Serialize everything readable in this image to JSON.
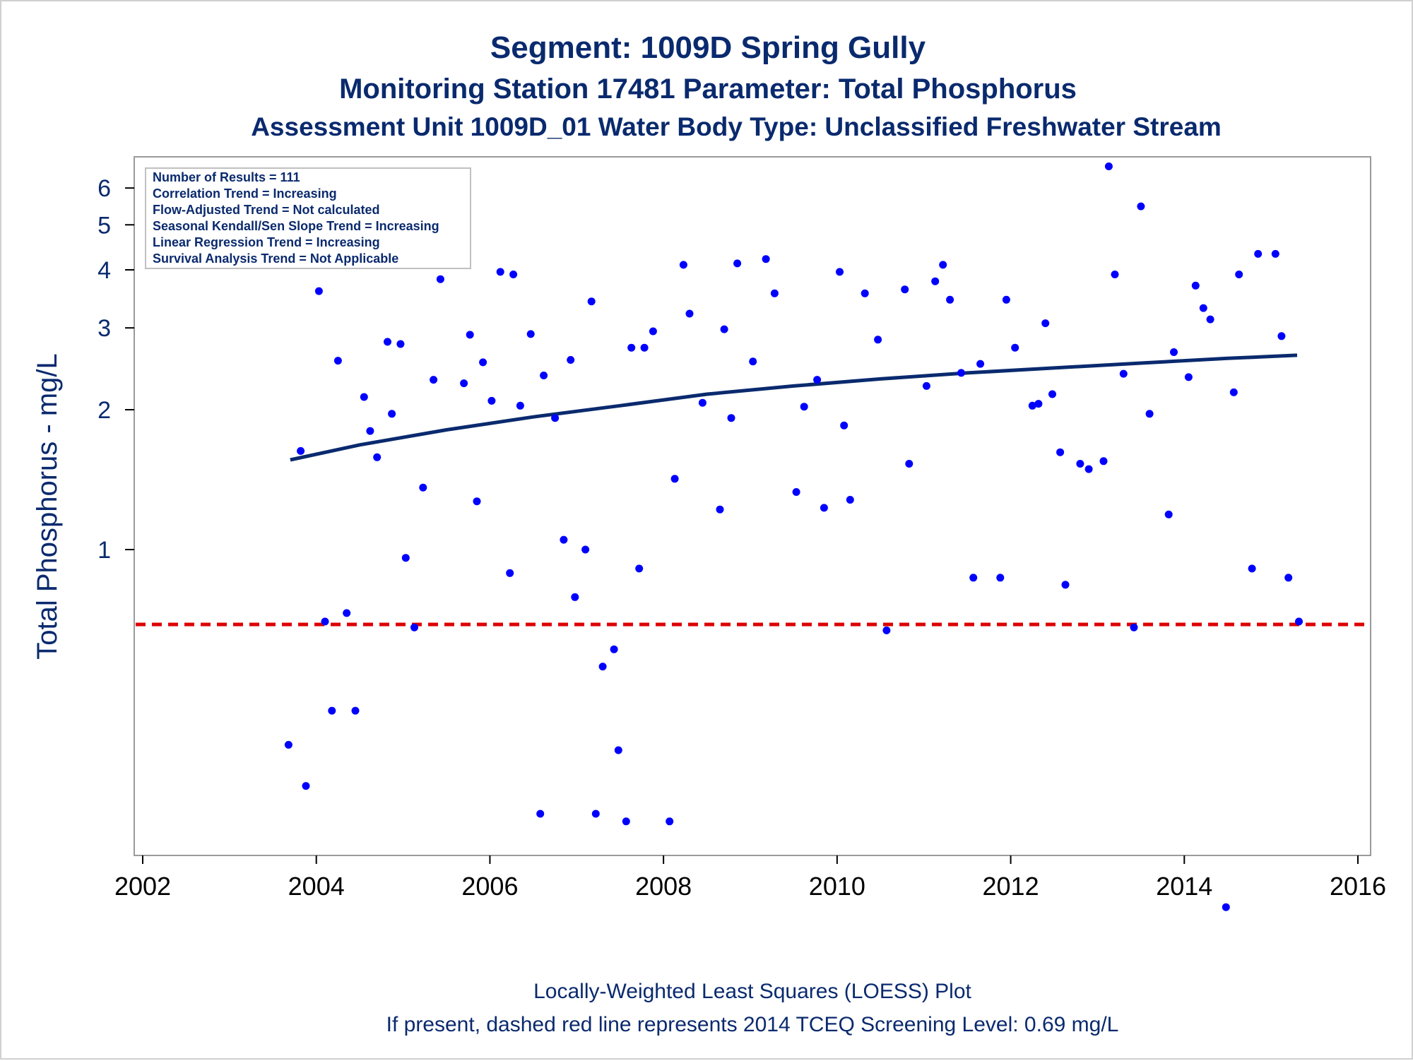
{
  "colors": {
    "title": "#0a2a6e",
    "points": "#0000ff",
    "loess": "#0a2a6e",
    "screening_line": "#dd0000",
    "plot_border": "#9a9a9a"
  },
  "chart_data": {
    "type": "scatter",
    "title": "Segment: 1009D  Spring Gully",
    "subtitle": "Monitoring Station 17481 Parameter: Total Phosphorus",
    "subtitle2": "Assessment Unit 1009D_01   Water Body Type: Unclassified Freshwater Stream",
    "xlabel": "",
    "ylabel": "Total Phosphorus - mg/L",
    "x_scale": "linear (year)",
    "y_scale": "log",
    "xlim": [
      2002,
      2016
    ],
    "ylim": [
      0.15,
      7.0
    ],
    "x_ticks": [
      "2002",
      "2004",
      "2006",
      "2008",
      "2010",
      "2012",
      "2014",
      "2016"
    ],
    "y_ticks": [
      "1",
      "2",
      "3",
      "4",
      "5",
      "6"
    ],
    "grid": false,
    "stats_box": {
      "placement": "top-left",
      "lines": [
        "Number of Results = 111",
        "Correlation Trend = Increasing",
        "Flow-Adjusted Trend = Not calculated",
        "Seasonal Kendall/Sen Slope Trend = Increasing",
        "Linear Regression Trend = Increasing",
        "Survival Analysis Trend = Not Applicable"
      ]
    },
    "screening_level": {
      "value": 0.69,
      "style": "dashed"
    },
    "captions": [
      "Locally-Weighted Least Squares (LOESS) Plot",
      "If present, dashed red line represents 2014 TCEQ Screening Level: 0.69 mg/L"
    ],
    "loess": {
      "x": [
        2003.7,
        2004.5,
        2005.5,
        2006.5,
        2007.5,
        2008.5,
        2009.5,
        2010.5,
        2011.5,
        2012.5,
        2013.5,
        2014.5,
        2015.3
      ],
      "y": [
        1.56,
        1.68,
        1.81,
        1.93,
        2.04,
        2.16,
        2.25,
        2.33,
        2.4,
        2.46,
        2.52,
        2.58,
        2.62
      ]
    },
    "points": [
      {
        "x": 2003.68,
        "y": 0.38
      },
      {
        "x": 2003.82,
        "y": 1.63
      },
      {
        "x": 2003.88,
        "y": 0.31
      },
      {
        "x": 2004.03,
        "y": 3.6
      },
      {
        "x": 2004.1,
        "y": 0.7
      },
      {
        "x": 2004.18,
        "y": 0.45
      },
      {
        "x": 2004.25,
        "y": 2.55
      },
      {
        "x": 2004.35,
        "y": 0.73
      },
      {
        "x": 2004.45,
        "y": 0.45
      },
      {
        "x": 2004.55,
        "y": 2.13
      },
      {
        "x": 2004.62,
        "y": 1.8
      },
      {
        "x": 2004.7,
        "y": 1.58
      },
      {
        "x": 2004.82,
        "y": 2.8
      },
      {
        "x": 2004.87,
        "y": 1.96
      },
      {
        "x": 2004.97,
        "y": 2.77
      },
      {
        "x": 2005.03,
        "y": 0.96
      },
      {
        "x": 2005.13,
        "y": 0.68
      },
      {
        "x": 2005.23,
        "y": 1.36
      },
      {
        "x": 2005.35,
        "y": 2.32
      },
      {
        "x": 2005.43,
        "y": 3.82
      },
      {
        "x": 2005.7,
        "y": 2.28
      },
      {
        "x": 2005.77,
        "y": 2.9
      },
      {
        "x": 2005.85,
        "y": 1.27
      },
      {
        "x": 2005.92,
        "y": 2.53
      },
      {
        "x": 2006.02,
        "y": 2.09
      },
      {
        "x": 2006.12,
        "y": 3.96
      },
      {
        "x": 2006.23,
        "y": 0.89
      },
      {
        "x": 2006.27,
        "y": 3.91
      },
      {
        "x": 2006.35,
        "y": 2.04
      },
      {
        "x": 2006.47,
        "y": 2.91
      },
      {
        "x": 2006.58,
        "y": 0.27
      },
      {
        "x": 2006.62,
        "y": 2.37
      },
      {
        "x": 2006.75,
        "y": 1.92
      },
      {
        "x": 2006.85,
        "y": 1.05
      },
      {
        "x": 2006.93,
        "y": 2.56
      },
      {
        "x": 2006.98,
        "y": 0.79
      },
      {
        "x": 2007.1,
        "y": 1.0
      },
      {
        "x": 2007.17,
        "y": 3.42
      },
      {
        "x": 2007.22,
        "y": 0.27
      },
      {
        "x": 2007.3,
        "y": 0.56
      },
      {
        "x": 2007.43,
        "y": 0.61
      },
      {
        "x": 2007.48,
        "y": 0.37
      },
      {
        "x": 2007.57,
        "y": 0.26
      },
      {
        "x": 2007.63,
        "y": 2.72
      },
      {
        "x": 2007.72,
        "y": 0.91
      },
      {
        "x": 2007.78,
        "y": 2.72
      },
      {
        "x": 2007.88,
        "y": 2.95
      },
      {
        "x": 2008.07,
        "y": 0.26
      },
      {
        "x": 2008.13,
        "y": 1.42
      },
      {
        "x": 2008.23,
        "y": 4.1
      },
      {
        "x": 2008.3,
        "y": 3.22
      },
      {
        "x": 2008.45,
        "y": 2.07
      },
      {
        "x": 2008.65,
        "y": 1.22
      },
      {
        "x": 2008.7,
        "y": 2.98
      },
      {
        "x": 2008.78,
        "y": 1.92
      },
      {
        "x": 2008.85,
        "y": 4.13
      },
      {
        "x": 2009.03,
        "y": 2.54
      },
      {
        "x": 2009.18,
        "y": 4.22
      },
      {
        "x": 2009.28,
        "y": 3.56
      },
      {
        "x": 2009.53,
        "y": 1.33
      },
      {
        "x": 2009.62,
        "y": 2.03
      },
      {
        "x": 2009.77,
        "y": 2.32
      },
      {
        "x": 2009.85,
        "y": 1.23
      },
      {
        "x": 2010.03,
        "y": 3.96
      },
      {
        "x": 2010.08,
        "y": 1.85
      },
      {
        "x": 2010.15,
        "y": 1.28
      },
      {
        "x": 2010.32,
        "y": 3.56
      },
      {
        "x": 2010.47,
        "y": 2.83
      },
      {
        "x": 2010.57,
        "y": 0.67
      },
      {
        "x": 2010.78,
        "y": 3.63
      },
      {
        "x": 2010.83,
        "y": 1.53
      },
      {
        "x": 2011.03,
        "y": 2.25
      },
      {
        "x": 2011.13,
        "y": 3.78
      },
      {
        "x": 2011.22,
        "y": 4.1
      },
      {
        "x": 2011.3,
        "y": 3.45
      },
      {
        "x": 2011.43,
        "y": 2.4
      },
      {
        "x": 2011.57,
        "y": 0.87
      },
      {
        "x": 2011.65,
        "y": 2.51
      },
      {
        "x": 2011.88,
        "y": 0.87
      },
      {
        "x": 2011.95,
        "y": 3.45
      },
      {
        "x": 2012.05,
        "y": 2.72
      },
      {
        "x": 2012.25,
        "y": 2.04
      },
      {
        "x": 2012.32,
        "y": 2.06
      },
      {
        "x": 2012.4,
        "y": 3.07
      },
      {
        "x": 2012.48,
        "y": 2.16
      },
      {
        "x": 2012.57,
        "y": 1.62
      },
      {
        "x": 2012.63,
        "y": 0.84
      },
      {
        "x": 2012.8,
        "y": 1.53
      },
      {
        "x": 2012.9,
        "y": 1.49
      },
      {
        "x": 2013.07,
        "y": 1.55
      },
      {
        "x": 2013.13,
        "y": 6.68
      },
      {
        "x": 2013.2,
        "y": 3.91
      },
      {
        "x": 2013.3,
        "y": 2.39
      },
      {
        "x": 2013.42,
        "y": 0.68
      },
      {
        "x": 2013.5,
        "y": 5.48
      },
      {
        "x": 2013.6,
        "y": 1.96
      },
      {
        "x": 2013.82,
        "y": 1.19
      },
      {
        "x": 2013.88,
        "y": 2.66
      },
      {
        "x": 2014.05,
        "y": 2.35
      },
      {
        "x": 2014.13,
        "y": 3.7
      },
      {
        "x": 2014.22,
        "y": 3.31
      },
      {
        "x": 2014.3,
        "y": 3.13
      },
      {
        "x": 2014.48,
        "y": 0.17
      },
      {
        "x": 2014.57,
        "y": 2.18
      },
      {
        "x": 2014.63,
        "y": 3.91
      },
      {
        "x": 2014.78,
        "y": 0.91
      },
      {
        "x": 2014.85,
        "y": 4.33
      },
      {
        "x": 2015.05,
        "y": 4.33
      },
      {
        "x": 2015.12,
        "y": 2.88
      },
      {
        "x": 2015.2,
        "y": 0.87
      },
      {
        "x": 2015.32,
        "y": 0.7
      }
    ]
  }
}
